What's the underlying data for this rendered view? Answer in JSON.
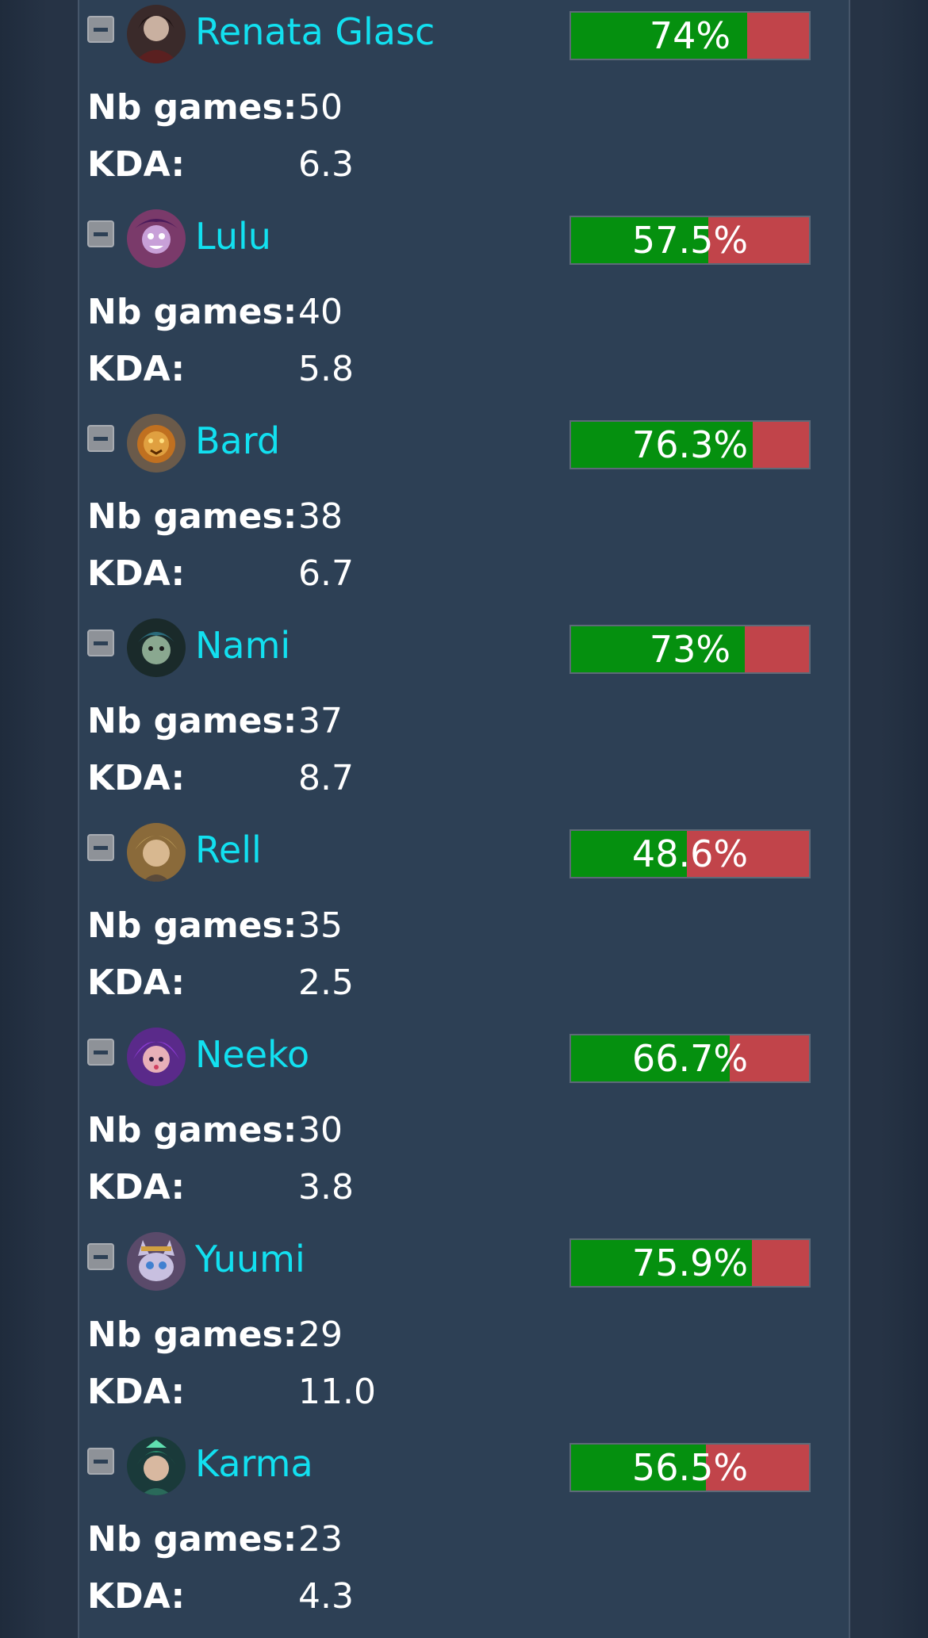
{
  "labels": {
    "games": "Nb games:",
    "kda": "KDA:"
  },
  "colors": {
    "win": "#05900f",
    "loss": "#c1444a",
    "name": "#12e0f0",
    "panel": "#2d4055"
  },
  "champions": [
    {
      "name": "Renata Glasc",
      "winrate_label": "74%",
      "winrate": 74,
      "games": "50",
      "kda": "6.3",
      "icon": "renata-glasc-portrait-icon",
      "hue": "#3a2a2a"
    },
    {
      "name": "Lulu",
      "winrate_label": "57.5%",
      "winrate": 57.5,
      "games": "40",
      "kda": "5.8",
      "icon": "lulu-portrait-icon",
      "hue": "#7a3a6a"
    },
    {
      "name": "Bard",
      "winrate_label": "76.3%",
      "winrate": 76.3,
      "games": "38",
      "kda": "6.7",
      "icon": "bard-portrait-icon",
      "hue": "#8a5a1a"
    },
    {
      "name": "Nami",
      "winrate_label": "73%",
      "winrate": 73,
      "games": "37",
      "kda": "8.7",
      "icon": "nami-portrait-icon",
      "hue": "#2a4a4a"
    },
    {
      "name": "Rell",
      "winrate_label": "48.6%",
      "winrate": 48.6,
      "games": "35",
      "kda": "2.5",
      "icon": "rell-portrait-icon",
      "hue": "#8a6a3a"
    },
    {
      "name": "Neeko",
      "winrate_label": "66.7%",
      "winrate": 66.7,
      "games": "30",
      "kda": "3.8",
      "icon": "neeko-portrait-icon",
      "hue": "#6a3a9a"
    },
    {
      "name": "Yuumi",
      "winrate_label": "75.9%",
      "winrate": 75.9,
      "games": "29",
      "kda": "11.0",
      "icon": "yuumi-portrait-icon",
      "hue": "#7a6a8a"
    },
    {
      "name": "Karma",
      "winrate_label": "56.5%",
      "winrate": 56.5,
      "games": "23",
      "kda": "4.3",
      "icon": "karma-portrait-icon",
      "hue": "#2a5a4a"
    }
  ]
}
